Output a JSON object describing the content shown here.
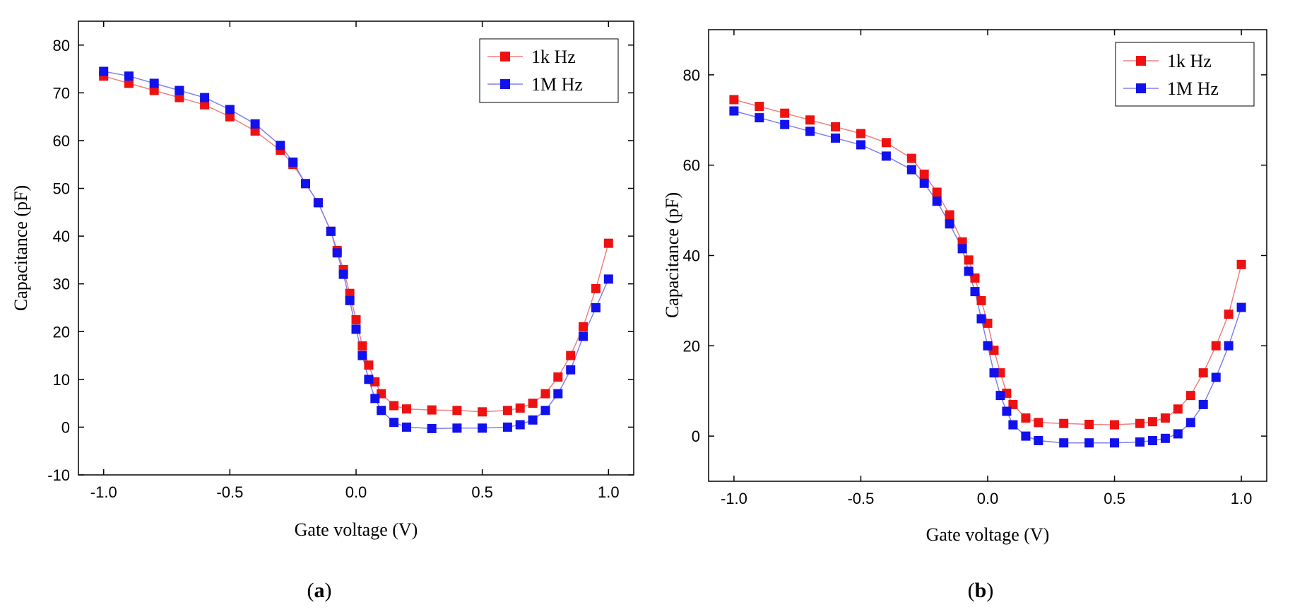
{
  "panels": [
    {
      "label_open": "(",
      "label_letter": "a",
      "label_close": ")"
    },
    {
      "label_open": "(",
      "label_letter": "b",
      "label_close": ")"
    }
  ],
  "colors": {
    "series_1k": "#ee1111",
    "series_1M": "#1111ee",
    "line_1k": "#f08080",
    "line_1M": "#8080f0"
  },
  "chart_data": [
    {
      "type": "scatter",
      "xlabel": "Gate voltage (V)",
      "ylabel": "Capacitance (pF)",
      "xlim": [
        -1.1,
        1.1
      ],
      "ylim": [
        -10,
        85
      ],
      "xticks": [
        -1.0,
        -0.5,
        0.0,
        0.5,
        1.0
      ],
      "xtick_labels": [
        "-1.0",
        "-0.5",
        "0.0",
        "0.5",
        "1.0"
      ],
      "yticks": [
        -10,
        0,
        10,
        20,
        30,
        40,
        50,
        60,
        70,
        80
      ],
      "ytick_labels": [
        "-10",
        "0",
        "10",
        "20",
        "30",
        "40",
        "50",
        "60",
        "70",
        "80"
      ],
      "legend_position": "top-right",
      "series": [
        {
          "name": "1k Hz",
          "x": [
            -1.0,
            -0.9,
            -0.8,
            -0.7,
            -0.6,
            -0.5,
            -0.4,
            -0.3,
            -0.25,
            -0.2,
            -0.15,
            -0.1,
            -0.075,
            -0.05,
            -0.025,
            0.0,
            0.025,
            0.05,
            0.075,
            0.1,
            0.15,
            0.2,
            0.3,
            0.4,
            0.5,
            0.6,
            0.65,
            0.7,
            0.75,
            0.8,
            0.85,
            0.9,
            0.95,
            1.0
          ],
          "y": [
            73.5,
            72,
            70.5,
            69,
            67.5,
            65,
            62,
            58,
            55,
            51,
            47,
            41,
            37,
            33,
            28,
            22.5,
            17,
            13,
            9.5,
            7,
            4.5,
            3.8,
            3.6,
            3.5,
            3.2,
            3.5,
            4,
            5,
            7,
            10.5,
            15,
            21,
            29,
            38.5
          ]
        },
        {
          "name": "1M Hz",
          "x": [
            -1.0,
            -0.9,
            -0.8,
            -0.7,
            -0.6,
            -0.5,
            -0.4,
            -0.3,
            -0.25,
            -0.2,
            -0.15,
            -0.1,
            -0.075,
            -0.05,
            -0.025,
            0.0,
            0.025,
            0.05,
            0.075,
            0.1,
            0.15,
            0.2,
            0.3,
            0.4,
            0.5,
            0.6,
            0.65,
            0.7,
            0.75,
            0.8,
            0.85,
            0.9,
            0.95,
            1.0
          ],
          "y": [
            74.5,
            73.5,
            72,
            70.5,
            69,
            66.5,
            63.5,
            59,
            55.5,
            51,
            47,
            41,
            36.5,
            32,
            26.5,
            20.5,
            15,
            10,
            6,
            3.5,
            1,
            0,
            -0.3,
            -0.2,
            -0.2,
            0,
            0.5,
            1.5,
            3.5,
            7,
            12,
            19,
            25,
            31
          ]
        }
      ]
    },
    {
      "type": "scatter",
      "xlabel": "Gate voltage (V)",
      "ylabel": "Capacitance (pF)",
      "xlim": [
        -1.1,
        1.1
      ],
      "ylim": [
        -10,
        90
      ],
      "xticks": [
        -1.0,
        -0.5,
        0.0,
        0.5,
        1.0
      ],
      "xtick_labels": [
        "-1.0",
        "-0.5",
        "0.0",
        "0.5",
        "1.0"
      ],
      "yticks": [
        0,
        20,
        40,
        60,
        80
      ],
      "ytick_labels": [
        "0",
        "20",
        "40",
        "60",
        "80"
      ],
      "legend_position": "top-right",
      "series": [
        {
          "name": "1k Hz",
          "x": [
            -1.0,
            -0.9,
            -0.8,
            -0.7,
            -0.6,
            -0.5,
            -0.4,
            -0.3,
            -0.25,
            -0.2,
            -0.15,
            -0.1,
            -0.075,
            -0.05,
            -0.025,
            0.0,
            0.025,
            0.05,
            0.075,
            0.1,
            0.15,
            0.2,
            0.3,
            0.4,
            0.5,
            0.6,
            0.65,
            0.7,
            0.75,
            0.8,
            0.85,
            0.9,
            0.95,
            1.0
          ],
          "y": [
            74.5,
            73,
            71.5,
            70,
            68.5,
            67,
            65,
            61.5,
            58,
            54,
            49,
            43,
            39,
            35,
            30,
            25,
            19,
            14,
            9.5,
            7,
            4,
            3,
            2.8,
            2.6,
            2.5,
            2.8,
            3.2,
            4,
            6,
            9,
            14,
            20,
            27,
            38
          ]
        },
        {
          "name": "1M Hz",
          "x": [
            -1.0,
            -0.9,
            -0.8,
            -0.7,
            -0.6,
            -0.5,
            -0.4,
            -0.3,
            -0.25,
            -0.2,
            -0.15,
            -0.1,
            -0.075,
            -0.05,
            -0.025,
            0.0,
            0.025,
            0.05,
            0.075,
            0.1,
            0.15,
            0.2,
            0.3,
            0.4,
            0.5,
            0.6,
            0.65,
            0.7,
            0.75,
            0.8,
            0.85,
            0.9,
            0.95,
            1.0
          ],
          "y": [
            72,
            70.5,
            69,
            67.5,
            66,
            64.5,
            62,
            59,
            56,
            52,
            47,
            41.5,
            36.5,
            32,
            26,
            20,
            14,
            9,
            5.5,
            2.5,
            0,
            -1,
            -1.5,
            -1.5,
            -1.5,
            -1.3,
            -1,
            -0.5,
            0.5,
            3,
            7,
            13,
            20,
            28.5
          ]
        }
      ]
    }
  ]
}
